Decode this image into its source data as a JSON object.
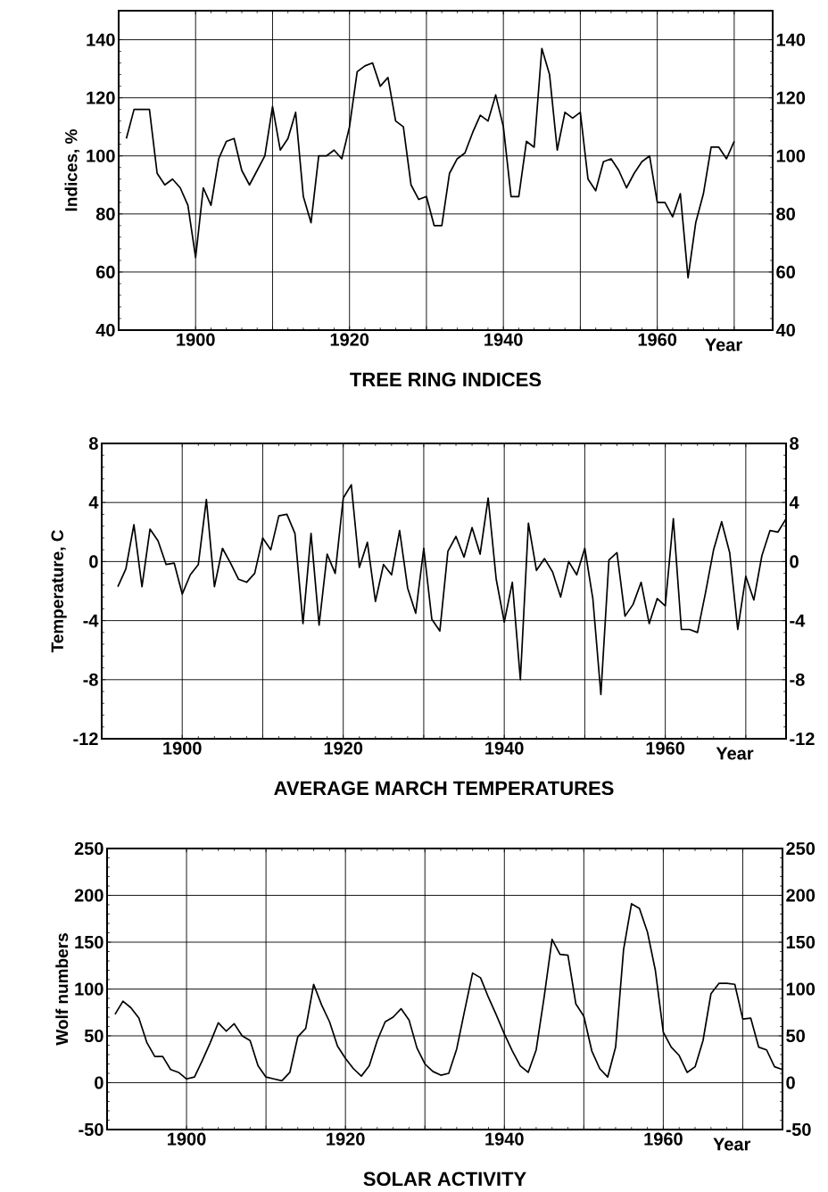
{
  "chart_data": [
    {
      "type": "line",
      "title": "TREE RING INDICES",
      "xlabel": "Year",
      "ylabel": "Indices, %",
      "color": "#000000",
      "grid": true,
      "xlim": [
        1890,
        1975
      ],
      "xticks": [
        1900,
        {
          "value": 1910,
          "label": null
        },
        1920,
        {
          "value": 1930,
          "label": null
        },
        1940,
        {
          "value": 1950,
          "label": null
        },
        1960,
        {
          "value": 1970,
          "label": null
        }
      ],
      "ylim": [
        40,
        150
      ],
      "yticks": [
        40,
        60,
        80,
        100,
        120,
        140
      ],
      "y2lim": [
        40,
        150
      ],
      "y2ticks": [
        40,
        60,
        80,
        100,
        120,
        140
      ],
      "x": [
        1891,
        1892,
        1893,
        1894,
        1895,
        1896,
        1897,
        1898,
        1899,
        1900,
        1901,
        1902,
        1903,
        1904,
        1905,
        1906,
        1907,
        1908,
        1909,
        1910,
        1911,
        1912,
        1913,
        1914,
        1915,
        1916,
        1917,
        1918,
        1919,
        1920,
        1921,
        1922,
        1923,
        1924,
        1925,
        1926,
        1927,
        1928,
        1929,
        1930,
        1931,
        1932,
        1933,
        1934,
        1935,
        1936,
        1937,
        1938,
        1939,
        1940,
        1941,
        1942,
        1943,
        1944,
        1945,
        1946,
        1947,
        1948,
        1949,
        1950,
        1951,
        1952,
        1953,
        1954,
        1955,
        1956,
        1957,
        1958,
        1959,
        1960,
        1961,
        1962,
        1963,
        1964,
        1965,
        1966,
        1967,
        1968,
        1969,
        1970
      ],
      "values": [
        106,
        116,
        116,
        116,
        94,
        90,
        92,
        89,
        83,
        65,
        89,
        83,
        99,
        105,
        106,
        95,
        90,
        95,
        100,
        117,
        102,
        106,
        115,
        86,
        77,
        100,
        100,
        102,
        99,
        110,
        129,
        131,
        132,
        124,
        127,
        112,
        110,
        90,
        85,
        86,
        76,
        76,
        94,
        99,
        101,
        108,
        114,
        112,
        121,
        110,
        86,
        86,
        105,
        103,
        137,
        128,
        102,
        115,
        113,
        115,
        92,
        88,
        98,
        99,
        95,
        89,
        94,
        98,
        100,
        84,
        84,
        79,
        87,
        58,
        77,
        87,
        103,
        103,
        99,
        105
      ]
    },
    {
      "type": "line",
      "title": "AVERAGE MARCH TEMPERATURES",
      "xlabel": "Year",
      "ylabel": "Temperature, C",
      "color": "#000000",
      "grid": true,
      "xlim": [
        1890,
        1975
      ],
      "xticks": [
        1900,
        {
          "value": 1910,
          "label": null
        },
        1920,
        {
          "value": 1930,
          "label": null
        },
        1940,
        {
          "value": 1950,
          "label": null
        },
        1960,
        {
          "value": 1970,
          "label": null
        }
      ],
      "ylim": [
        -12,
        8
      ],
      "yticks": [
        -12,
        -8,
        -4,
        0,
        4,
        8
      ],
      "y2lim": [
        -12,
        8
      ],
      "y2ticks": [
        -12,
        -8,
        -4,
        0,
        4,
        8
      ],
      "x": [
        1892,
        1893,
        1894,
        1895,
        1896,
        1897,
        1898,
        1899,
        1900,
        1901,
        1902,
        1903,
        1904,
        1905,
        1906,
        1907,
        1908,
        1909,
        1910,
        1911,
        1912,
        1913,
        1914,
        1915,
        1916,
        1917,
        1918,
        1919,
        1920,
        1921,
        1922,
        1923,
        1924,
        1925,
        1926,
        1927,
        1928,
        1929,
        1930,
        1931,
        1932,
        1933,
        1934,
        1935,
        1936,
        1937,
        1938,
        1939,
        1940,
        1941,
        1942,
        1943,
        1944,
        1945,
        1946,
        1947,
        1948,
        1949,
        1950,
        1951,
        1952,
        1953,
        1954,
        1955,
        1956,
        1957,
        1958,
        1959,
        1960,
        1961,
        1962,
        1963,
        1964,
        1965,
        1966,
        1967,
        1968,
        1969,
        1970,
        1971,
        1972,
        1973,
        1974,
        1975
      ],
      "values": [
        -1.7,
        -0.5,
        2.5,
        -1.7,
        2.2,
        1.4,
        -0.2,
        -0.1,
        -2.2,
        -0.9,
        -0.2,
        4.2,
        -1.7,
        0.9,
        -0.1,
        -1.2,
        -1.4,
        -0.8,
        1.6,
        0.8,
        3.1,
        3.2,
        1.9,
        -4.2,
        1.9,
        -4.3,
        0.5,
        -0.8,
        4.3,
        5.2,
        -0.4,
        1.3,
        -2.7,
        -0.2,
        -0.9,
        2.1,
        -1.8,
        -3.5,
        0.9,
        -3.9,
        -4.7,
        0.7,
        1.7,
        0.3,
        2.3,
        0.5,
        4.3,
        -1.2,
        -4.1,
        -1.4,
        -8.0,
        2.6,
        -0.6,
        0.2,
        -0.7,
        -2.4,
        0,
        -0.9,
        0.9,
        -2.5,
        -9.0,
        0.1,
        0.6,
        -3.7,
        -2.9,
        -1.4,
        -4.2,
        -2.5,
        -3.0,
        2.9,
        -4.6,
        -4.6,
        -4.8,
        -2.1,
        0.8,
        2.7,
        0.6,
        -4.6,
        -1.0,
        -2.6,
        0.4,
        2.1,
        2.0,
        2.9
      ]
    },
    {
      "type": "line",
      "title": "SOLAR ACTIVITY",
      "xlabel": "Year",
      "ylabel": "Wolf numbers",
      "color": "#000000",
      "grid": true,
      "xlim": [
        1890,
        1975
      ],
      "xticks": [
        1900,
        {
          "value": 1910,
          "label": null
        },
        1920,
        {
          "value": 1930,
          "label": null
        },
        1940,
        {
          "value": 1950,
          "label": null
        },
        1960,
        {
          "value": 1970,
          "label": null
        }
      ],
      "ylim": [
        -50,
        250
      ],
      "yticks": [
        -50,
        0,
        50,
        100,
        150,
        200,
        250
      ],
      "y2lim": [
        -50,
        250
      ],
      "y2ticks": [
        -50,
        0,
        50,
        100,
        150,
        200,
        250
      ],
      "x": [
        1891,
        1892,
        1893,
        1894,
        1895,
        1896,
        1897,
        1898,
        1899,
        1900,
        1901,
        1902,
        1903,
        1904,
        1905,
        1906,
        1907,
        1908,
        1909,
        1910,
        1911,
        1912,
        1913,
        1914,
        1915,
        1916,
        1917,
        1918,
        1919,
        1920,
        1921,
        1922,
        1923,
        1924,
        1925,
        1926,
        1927,
        1928,
        1929,
        1930,
        1931,
        1932,
        1933,
        1934,
        1935,
        1936,
        1937,
        1938,
        1939,
        1940,
        1941,
        1942,
        1943,
        1944,
        1945,
        1946,
        1947,
        1948,
        1949,
        1950,
        1951,
        1952,
        1953,
        1954,
        1955,
        1956,
        1957,
        1958,
        1959,
        1960,
        1961,
        1962,
        1963,
        1964,
        1965,
        1966,
        1967,
        1968,
        1969,
        1970,
        1971,
        1972,
        1973,
        1974,
        1975
      ],
      "values": [
        73,
        87,
        80,
        69,
        43,
        28,
        28,
        14,
        11,
        4,
        6,
        24,
        43,
        64,
        55,
        63,
        50,
        45,
        18,
        6,
        4,
        2,
        11,
        49,
        58,
        105,
        83,
        65,
        39,
        26,
        15,
        7,
        18,
        45,
        65,
        70,
        79,
        67,
        37,
        20,
        12,
        8,
        10,
        36,
        77,
        117,
        112,
        91,
        72,
        52,
        34,
        18,
        11,
        35,
        91,
        153,
        137,
        136,
        84,
        71,
        34,
        15,
        6,
        38,
        142,
        191,
        186,
        161,
        120,
        54,
        38,
        29,
        11,
        17,
        45,
        95,
        106,
        106,
        105,
        68,
        69,
        38,
        35,
        17,
        14
      ]
    }
  ]
}
